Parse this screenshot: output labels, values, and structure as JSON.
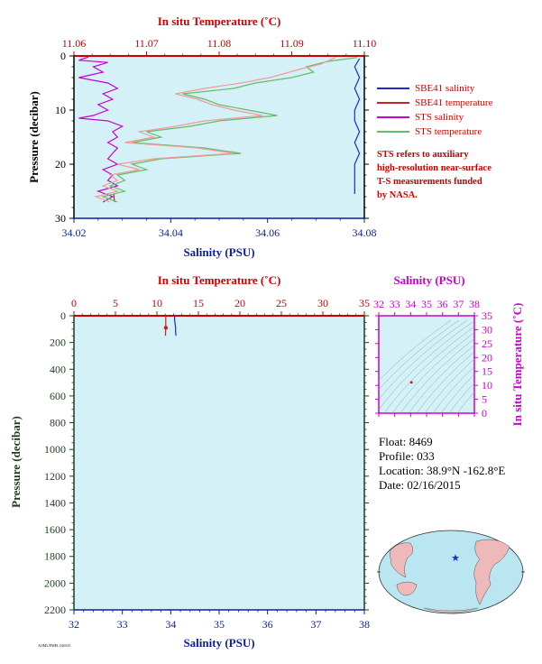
{
  "colors": {
    "plot_bg": "#d3f1f7",
    "temp_axis": "#cc0000",
    "sal_axis": "#0b1f9e",
    "pres_axis": "#1e3d1e",
    "ts_axis": "#cc00cc",
    "sbe_sal": "#1a2ccc",
    "sbe_temp": "#cc2222",
    "sts_sal": "#cc00cc",
    "sts_temp": "#66bb66",
    "sts_temp_pink": "#f29b9b"
  },
  "legend": {
    "items": [
      {
        "label": "SBE41 salinity",
        "color": "#1a2ccc"
      },
      {
        "label": "SBE41 temperature",
        "color": "#cc2222"
      },
      {
        "label": "STS salinity",
        "color": "#cc00cc"
      },
      {
        "label": "STS temperature",
        "color": "#66bb66"
      }
    ]
  },
  "note": {
    "lines": [
      "STS refers to auxiliary",
      "high-resolution near-surface",
      "T-S measurements funded",
      "by NASA."
    ]
  },
  "info": {
    "float": "Float:  8469",
    "profile": "Profile:  033",
    "location": "Location:  38.9°N  -162.8°E",
    "date": "Date:  02/16/2015"
  },
  "footer_text": "AOML/PMEL 020315",
  "chart_data": [
    {
      "type": "line",
      "title_top": "In situ Temperature (˚C)",
      "xlabel": "Salinity (PSU)",
      "ylabel": "Pressure (decibar)",
      "top_ticks": [
        "11.06",
        "11.07",
        "11.08",
        "11.09",
        "11.10"
      ],
      "top_range": [
        11.06,
        11.1
      ],
      "bottom_ticks": [
        "34.02",
        "34.04",
        "34.06",
        "34.08"
      ],
      "bottom_range": [
        34.02,
        34.08
      ],
      "y_ticks": [
        "0",
        "10",
        "20",
        "30"
      ],
      "ylim": [
        0,
        30
      ],
      "y_inverted": true,
      "series": [
        {
          "name": "SBE41 salinity",
          "axis": "bottom",
          "color": "#1a2ccc",
          "points": [
            [
              34.079,
              0.5
            ],
            [
              34.078,
              2
            ],
            [
              34.079,
              4
            ],
            [
              34.078,
              6
            ],
            [
              34.079,
              8
            ],
            [
              34.078,
              10
            ],
            [
              34.078,
              12
            ],
            [
              34.079,
              14
            ],
            [
              34.078,
              16
            ],
            [
              34.079,
              18
            ],
            [
              34.078,
              20
            ],
            [
              34.078,
              22
            ],
            [
              34.078,
              24
            ],
            [
              34.078,
              25.5
            ]
          ]
        },
        {
          "name": "SBE41 temperature",
          "axis": "top",
          "color": "#cc2222",
          "points": [
            [
              11.0655,
              25.5
            ],
            [
              11.0655,
              26
            ],
            [
              11.0656,
              27
            ]
          ]
        },
        {
          "name": "STS salinity",
          "axis": "bottom",
          "color": "#cc00cc",
          "points": [
            [
              34.023,
              0.2
            ],
            [
              34.021,
              0.8
            ],
            [
              34.027,
              1.2
            ],
            [
              34.024,
              2
            ],
            [
              34.026,
              3
            ],
            [
              34.021,
              4
            ],
            [
              34.027,
              5
            ],
            [
              34.029,
              6
            ],
            [
              34.026,
              7
            ],
            [
              34.028,
              8
            ],
            [
              34.025,
              9
            ],
            [
              34.027,
              10
            ],
            [
              34.024,
              11
            ],
            [
              34.021,
              11.5
            ],
            [
              34.027,
              12
            ],
            [
              34.03,
              13
            ],
            [
              34.028,
              14
            ],
            [
              34.029,
              15
            ],
            [
              34.027,
              16
            ],
            [
              34.029,
              17
            ],
            [
              34.028,
              18
            ],
            [
              34.027,
              19
            ],
            [
              34.029,
              20
            ],
            [
              34.026,
              21
            ],
            [
              34.028,
              22
            ],
            [
              34.027,
              23
            ],
            [
              34.029,
              24
            ],
            [
              34.025,
              25
            ],
            [
              34.028,
              26
            ],
            [
              34.026,
              27
            ]
          ]
        },
        {
          "name": "STS temperature",
          "axis": "top",
          "color": "#66bb66",
          "points": [
            [
              11.099,
              0.3
            ],
            [
              11.095,
              1
            ],
            [
              11.092,
              2
            ],
            [
              11.093,
              3
            ],
            [
              11.09,
              4
            ],
            [
              11.085,
              5
            ],
            [
              11.082,
              6
            ],
            [
              11.075,
              7
            ],
            [
              11.078,
              8
            ],
            [
              11.08,
              9
            ],
            [
              11.084,
              10
            ],
            [
              11.088,
              11
            ],
            [
              11.08,
              12
            ],
            [
              11.076,
              13
            ],
            [
              11.07,
              14
            ],
            [
              11.072,
              15
            ],
            [
              11.068,
              16
            ],
            [
              11.078,
              17
            ],
            [
              11.083,
              18
            ],
            [
              11.072,
              19
            ],
            [
              11.068,
              20
            ],
            [
              11.07,
              21
            ],
            [
              11.066,
              22
            ],
            [
              11.067,
              23
            ],
            [
              11.065,
              24
            ],
            [
              11.067,
              25
            ],
            [
              11.064,
              26
            ],
            [
              11.066,
              27
            ]
          ]
        },
        {
          "name": "STS temperature (pink trace)",
          "axis": "top",
          "color": "#f29b9b",
          "points": [
            [
              11.096,
              0.3
            ],
            [
              11.094,
              1.5
            ],
            [
              11.091,
              2.5
            ],
            [
              11.087,
              4
            ],
            [
              11.083,
              5
            ],
            [
              11.078,
              6
            ],
            [
              11.074,
              7
            ],
            [
              11.077,
              8
            ],
            [
              11.079,
              9
            ],
            [
              11.082,
              10
            ],
            [
              11.086,
              11
            ],
            [
              11.078,
              12
            ],
            [
              11.074,
              13
            ],
            [
              11.069,
              14
            ],
            [
              11.071,
              15
            ],
            [
              11.067,
              16
            ],
            [
              11.077,
              17
            ],
            [
              11.082,
              18
            ],
            [
              11.071,
              19
            ],
            [
              11.066,
              20
            ],
            [
              11.069,
              21
            ],
            [
              11.065,
              22
            ],
            [
              11.066,
              23
            ],
            [
              11.064,
              24
            ],
            [
              11.066,
              25
            ],
            [
              11.063,
              26
            ],
            [
              11.065,
              27
            ]
          ]
        }
      ]
    },
    {
      "type": "line",
      "title_top": "In situ Temperature (˚C)",
      "xlabel": "Salinity (PSU)",
      "ylabel": "Pressure (decibar)",
      "top_ticks": [
        "0",
        "5",
        "10",
        "15",
        "20",
        "25",
        "30",
        "35"
      ],
      "top_range": [
        0,
        35
      ],
      "bottom_ticks": [
        "32",
        "33",
        "34",
        "35",
        "36",
        "37",
        "38"
      ],
      "bottom_range": [
        32,
        38
      ],
      "y_ticks": [
        "0",
        "200",
        "400",
        "600",
        "800",
        "1000",
        "1200",
        "1400",
        "1600",
        "1800",
        "2000",
        "2200"
      ],
      "ylim": [
        0,
        2200
      ],
      "y_inverted": true,
      "series": [
        {
          "name": "SBE41 salinity",
          "axis": "bottom",
          "color": "#1a2ccc",
          "points": [
            [
              34.08,
              0
            ],
            [
              34.08,
              30
            ],
            [
              34.09,
              60
            ],
            [
              34.1,
              90
            ],
            [
              34.1,
              120
            ],
            [
              34.11,
              150
            ]
          ]
        },
        {
          "name": "SBE41 temperature",
          "axis": "top",
          "color": "#cc2222",
          "points": [
            [
              11.08,
              0
            ],
            [
              11.07,
              30
            ],
            [
              11.06,
              60
            ],
            [
              11.05,
              90
            ],
            [
              11.04,
              120
            ],
            [
              11.03,
              150
            ]
          ]
        }
      ]
    },
    {
      "type": "scatter",
      "title_top": "Salinity (PSU)",
      "ylabel": "In situ Temperature (˚C)",
      "top_ticks": [
        "32",
        "33",
        "34",
        "35",
        "36",
        "37",
        "38"
      ],
      "top_range": [
        32,
        38
      ],
      "y_ticks": [
        "0",
        "5",
        "10",
        "15",
        "20",
        "25",
        "30",
        "35"
      ],
      "ylim": [
        0,
        35
      ],
      "points": [
        [
          34.05,
          11.07
        ]
      ]
    }
  ]
}
